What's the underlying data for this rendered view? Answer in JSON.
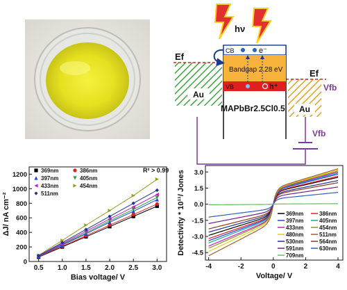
{
  "colors": {
    "hatch_green": "#3aa83a",
    "hatch_gold": "#e0a020",
    "band_orange": "#f6b23a",
    "vb_red": "#e02020",
    "circuit_purple": "#7a3a9a",
    "ef_red": "#d42020"
  },
  "diagram": {
    "light_label": "hν",
    "cb_label": "CB",
    "electron_label": "e⁻",
    "bandgap_label": "Bandgap 2.28 eV",
    "vb_label": "VB",
    "hole_label": "h⁺",
    "ef_left_label": "Ef",
    "ef_right_label": "Ef",
    "vfb_label": "Vfb",
    "vfb_source_label": "Vfb",
    "au_left_label": "Au",
    "au_right_label": "Au",
    "material_label": "MAPbBr2.5Cl0.5"
  },
  "chart_data": [
    {
      "type": "scatter",
      "title": "",
      "xlabel": "Bias voltage/ V",
      "ylabel": "ΔJ/ nA cm⁻²",
      "xlim": [
        0.3,
        3.2
      ],
      "ylim": [
        0,
        1300
      ],
      "xticks": [
        "0.5",
        "1.0",
        "1.5",
        "2.0",
        "2.5",
        "3.0"
      ],
      "yticks": [
        "0",
        "200",
        "400",
        "600",
        "800",
        "1000",
        "1200"
      ],
      "annotation": "R² > 0.99",
      "x": [
        0.5,
        1.0,
        1.5,
        2.0,
        2.5,
        3.0
      ],
      "legend_position": "top-left",
      "series": [
        {
          "name": "369nm",
          "color": "#000000",
          "marker": "square",
          "values": [
            60,
            200,
            340,
            480,
            620,
            760
          ]
        },
        {
          "name": "386nm",
          "color": "#e02020",
          "marker": "circle",
          "values": [
            65,
            210,
            355,
            500,
            645,
            790
          ]
        },
        {
          "name": "397nm",
          "color": "#2040e0",
          "marker": "triangle-up",
          "values": [
            70,
            225,
            380,
            540,
            690,
            850
          ]
        },
        {
          "name": "405nm",
          "color": "#20a040",
          "marker": "triangle-down",
          "values": [
            72,
            235,
            395,
            560,
            715,
            880
          ]
        },
        {
          "name": "433nm",
          "color": "#c020c0",
          "marker": "triangle-left",
          "values": [
            75,
            245,
            415,
            585,
            750,
            920
          ]
        },
        {
          "name": "454nm",
          "color": "#9a9a20",
          "marker": "triangle-right",
          "values": [
            85,
            290,
            500,
            700,
            905,
            1130
          ]
        },
        {
          "name": "511nm",
          "color": "#203090",
          "marker": "diamond",
          "values": [
            80,
            260,
            440,
            620,
            800,
            980
          ]
        }
      ]
    },
    {
      "type": "line",
      "title": "",
      "xlabel": "Voltage/ V",
      "ylabel": "Detectivity * 10¹¹/ Jones",
      "xlim": [
        -4.2,
        4.3
      ],
      "ylim": [
        -5.2,
        3.6
      ],
      "xticks": [
        "-4",
        "-2",
        "0",
        "2",
        "4"
      ],
      "yticks": [
        "-4.5",
        "-3.0",
        "-1.5",
        "0.0",
        "1.5",
        "3.0"
      ],
      "legend_position": "lower-right",
      "series": [
        {
          "name": "369nm",
          "color": "#000000",
          "neg": -2.9,
          "pos": 2.5
        },
        {
          "name": "386nm",
          "color": "#e02020",
          "neg": -3.2,
          "pos": 2.6
        },
        {
          "name": "397nm",
          "color": "#2040e0",
          "neg": -3.4,
          "pos": 2.8
        },
        {
          "name": "405nm",
          "color": "#20a0a0",
          "neg": -3.6,
          "pos": 2.9
        },
        {
          "name": "433nm",
          "color": "#c020c0",
          "neg": -3.9,
          "pos": 3.0
        },
        {
          "name": "454nm",
          "color": "#909020",
          "neg": -4.1,
          "pos": 3.1
        },
        {
          "name": "480nm",
          "color": "#e0d020",
          "neg": -4.4,
          "pos": 3.2
        },
        {
          "name": "511nm",
          "color": "#a06030",
          "neg": -4.8,
          "pos": 3.3
        },
        {
          "name": "530nm",
          "color": "#203090",
          "neg": -2.6,
          "pos": 2.2
        },
        {
          "name": "564nm",
          "color": "#8a3a1a",
          "neg": -2.3,
          "pos": 2.0
        },
        {
          "name": "591nm",
          "color": "#702080",
          "neg": -1.8,
          "pos": 1.6
        },
        {
          "name": "630nm",
          "color": "#3060c0",
          "neg": -1.2,
          "pos": 1.1
        },
        {
          "name": "709nm",
          "color": "#60c060",
          "neg": -0.05,
          "pos": 0.05
        }
      ]
    }
  ]
}
